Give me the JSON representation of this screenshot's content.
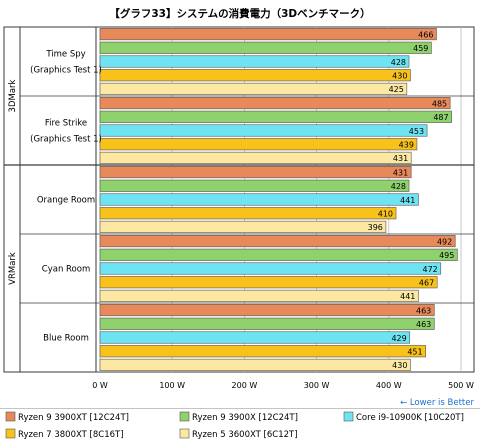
{
  "chart_data": {
    "type": "bar",
    "orientation": "horizontal",
    "title": "【グラフ33】システムの消費電力（3Dベンチマーク）",
    "groups": [
      {
        "name": "3DMark",
        "categories": [
          "Time Spy (Graphics Test 1)",
          "Fire Strike (Graphics Test 1)"
        ]
      },
      {
        "name": "VRMark",
        "categories": [
          "Orange Room",
          "Cyan Room",
          "Blue Room"
        ]
      }
    ],
    "category_labels": [
      [
        "Time Spy",
        "(Graphics Test 1)"
      ],
      [
        "Fire Strike",
        "(Graphics Test 1)"
      ],
      [
        "Orange Room"
      ],
      [
        "Cyan Room"
      ],
      [
        "Blue Room"
      ]
    ],
    "series": [
      {
        "name": "Ryzen 9 3900XT [12C24T]",
        "color": "#e8895a",
        "values": [
          466,
          485,
          431,
          492,
          463
        ]
      },
      {
        "name": "Ryzen 9 3900X [12C24T]",
        "color": "#8fd16c",
        "values": [
          459,
          487,
          428,
          495,
          463
        ]
      },
      {
        "name": "Core i9-10900K [10C20T]",
        "color": "#6ee4f2",
        "values": [
          428,
          453,
          441,
          472,
          429
        ]
      },
      {
        "name": "Ryzen 7 3800XT [8C16T]",
        "color": "#f8c21a",
        "values": [
          430,
          439,
          410,
          467,
          451
        ]
      },
      {
        "name": "Ryzen 5 3600XT [6C12T]",
        "color": "#fde8a3",
        "values": [
          425,
          431,
          396,
          441,
          430
        ]
      }
    ],
    "xlim": [
      0,
      500
    ],
    "xticks": [
      0,
      100,
      200,
      300,
      400,
      500
    ],
    "xtick_labels": [
      "0 W",
      "100 W",
      "200 W",
      "300 W",
      "400 W",
      "500 W"
    ],
    "grid": true,
    "annotation": "← Lower is Better",
    "legend_position": "bottom"
  },
  "colors": {
    "border": "#3a3a3a",
    "grid": "#bdbdbd",
    "bar_outline": "#555555",
    "annotation": "#1f6fd0"
  }
}
